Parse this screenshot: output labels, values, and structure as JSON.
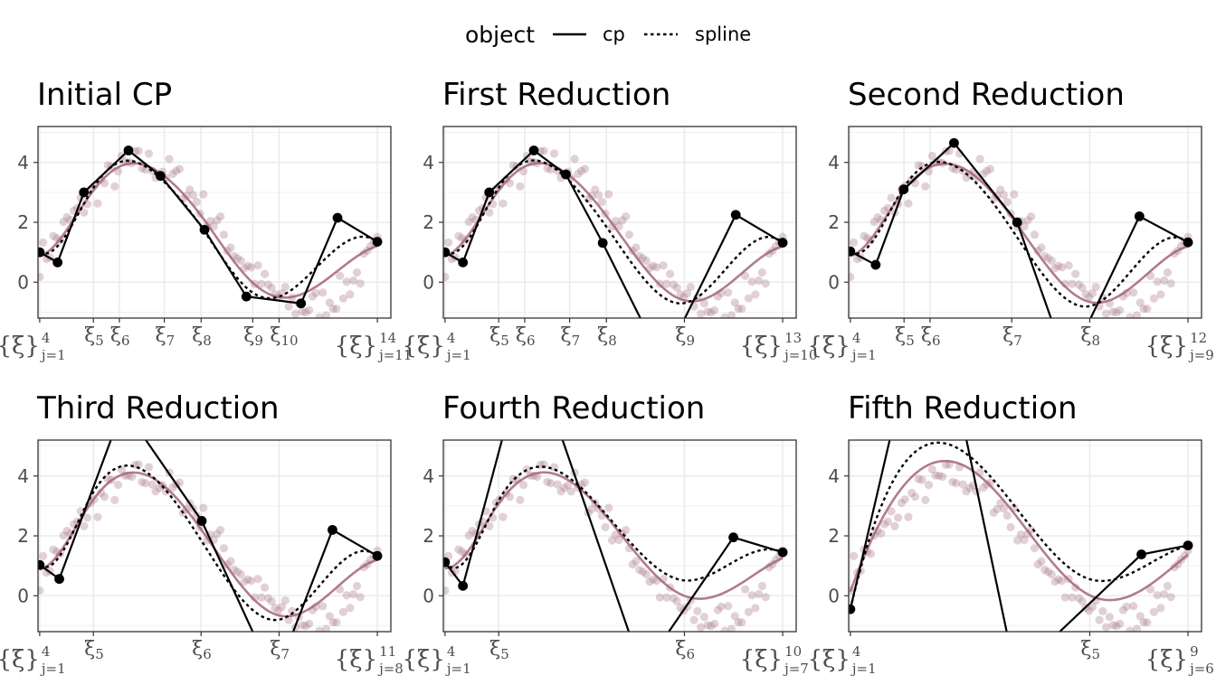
{
  "legend": {
    "title": "object",
    "entries": [
      {
        "label": "cp",
        "linetype": "solid"
      },
      {
        "label": "spline",
        "linetype": "dashed"
      }
    ]
  },
  "colors": {
    "points": "#a87a8c",
    "fitted": "#a5647b",
    "curve": "#000000",
    "grid": "#ebebeb",
    "panel_border": "#333333"
  },
  "chart_data": [
    {
      "type": "line",
      "title": "Initial CP",
      "xlim": [
        -0.005,
        1.04
      ],
      "ylim": [
        -1.2,
        5.2
      ],
      "yticks": [
        0,
        2,
        4
      ],
      "knots": [
        {
          "x": 0.0,
          "symbol": "{ξ}",
          "sup": "4",
          "sub": "j=1"
        },
        {
          "x": 0.159,
          "symbol": "ξ",
          "sub": "5"
        },
        {
          "x": 0.236,
          "symbol": "ξ",
          "sub": "6"
        },
        {
          "x": 0.369,
          "symbol": "ξ",
          "sub": "7"
        },
        {
          "x": 0.478,
          "symbol": "ξ",
          "sub": "8"
        },
        {
          "x": 0.631,
          "symbol": "ξ",
          "sub": "9"
        },
        {
          "x": 0.709,
          "symbol": "ξ",
          "sub": "10"
        },
        {
          "x": 1.0,
          "symbol": "{ξ}",
          "sup": "14",
          "sub": "j=11"
        }
      ],
      "control_polygon": [
        [
          0.0,
          1.0
        ],
        [
          0.053,
          0.66
        ],
        [
          0.131,
          3.0
        ],
        [
          0.263,
          4.4
        ],
        [
          0.358,
          3.55
        ],
        [
          0.488,
          1.75
        ],
        [
          0.612,
          -0.48
        ],
        [
          0.774,
          -0.71
        ],
        [
          0.882,
          2.15
        ],
        [
          1.0,
          1.35
        ]
      ]
    },
    {
      "type": "line",
      "title": "First Reduction",
      "xlim": [
        -0.005,
        1.04
      ],
      "ylim": [
        -1.2,
        5.2
      ],
      "yticks": [
        0,
        2,
        4
      ],
      "knots": [
        {
          "x": 0.0,
          "symbol": "{ξ}",
          "sup": "4",
          "sub": "j=1"
        },
        {
          "x": 0.159,
          "symbol": "ξ",
          "sub": "5"
        },
        {
          "x": 0.236,
          "symbol": "ξ",
          "sub": "6"
        },
        {
          "x": 0.369,
          "symbol": "ξ",
          "sub": "7"
        },
        {
          "x": 0.478,
          "symbol": "ξ",
          "sub": "8"
        },
        {
          "x": 0.709,
          "symbol": "ξ",
          "sub": "9"
        },
        {
          "x": 1.0,
          "symbol": "{ξ}",
          "sup": "13",
          "sub": "j=10"
        }
      ],
      "control_polygon": [
        [
          0.0,
          1.0
        ],
        [
          0.053,
          0.66
        ],
        [
          0.131,
          3.0
        ],
        [
          0.263,
          4.4
        ],
        [
          0.358,
          3.6
        ],
        [
          0.467,
          1.31
        ],
        [
          0.645,
          -2.7
        ],
        [
          0.861,
          2.25
        ],
        [
          1.0,
          1.32
        ]
      ]
    },
    {
      "type": "line",
      "title": "Second Reduction",
      "xlim": [
        -0.005,
        1.04
      ],
      "ylim": [
        -1.2,
        5.2
      ],
      "yticks": [
        0,
        2,
        4
      ],
      "knots": [
        {
          "x": 0.0,
          "symbol": "{ξ}",
          "sup": "4",
          "sub": "j=1"
        },
        {
          "x": 0.159,
          "symbol": "ξ",
          "sub": "5"
        },
        {
          "x": 0.236,
          "symbol": "ξ",
          "sub": "6"
        },
        {
          "x": 0.478,
          "symbol": "ξ",
          "sub": "7"
        },
        {
          "x": 0.709,
          "symbol": "ξ",
          "sub": "8"
        },
        {
          "x": 1.0,
          "symbol": "{ξ}",
          "sup": "12",
          "sub": "j=9"
        }
      ],
      "control_polygon": [
        [
          0.0,
          1.03
        ],
        [
          0.075,
          0.58
        ],
        [
          0.158,
          3.1
        ],
        [
          0.307,
          4.65
        ],
        [
          0.494,
          2.0
        ],
        [
          0.644,
          -2.8
        ],
        [
          0.856,
          2.2
        ],
        [
          1.0,
          1.33
        ]
      ]
    },
    {
      "type": "line",
      "title": "Third Reduction",
      "xlim": [
        -0.005,
        1.04
      ],
      "ylim": [
        -1.2,
        5.2
      ],
      "yticks": [
        0,
        2,
        4
      ],
      "knots": [
        {
          "x": 0.0,
          "symbol": "{ξ}",
          "sup": "4",
          "sub": "j=1"
        },
        {
          "x": 0.159,
          "symbol": "ξ",
          "sub": "5"
        },
        {
          "x": 0.478,
          "symbol": "ξ",
          "sub": "6"
        },
        {
          "x": 0.709,
          "symbol": "ξ",
          "sub": "7"
        },
        {
          "x": 1.0,
          "symbol": "{ξ}",
          "sup": "11",
          "sub": "j=8"
        }
      ],
      "control_polygon": [
        [
          0.0,
          1.03
        ],
        [
          0.058,
          0.56
        ],
        [
          0.247,
          6.3
        ],
        [
          0.48,
          2.5
        ],
        [
          0.696,
          -2.8
        ],
        [
          0.867,
          2.2
        ],
        [
          1.0,
          1.33
        ]
      ]
    },
    {
      "type": "line",
      "title": "Fourth Reduction",
      "xlim": [
        -0.005,
        1.04
      ],
      "ylim": [
        -1.2,
        5.2
      ],
      "yticks": [
        0,
        2,
        4
      ],
      "knots": [
        {
          "x": 0.0,
          "symbol": "{ξ}",
          "sup": "4",
          "sub": "j=1"
        },
        {
          "x": 0.159,
          "symbol": "ξ",
          "sub": "5"
        },
        {
          "x": 0.709,
          "symbol": "ξ",
          "sub": "6"
        },
        {
          "x": 1.0,
          "symbol": "{ξ}",
          "sup": "10",
          "sub": "j=7"
        }
      ],
      "control_polygon": [
        [
          0.0,
          1.12
        ],
        [
          0.053,
          0.33
        ],
        [
          0.247,
          8.5
        ],
        [
          0.584,
          -2.5
        ],
        [
          0.854,
          1.95
        ],
        [
          1.0,
          1.45
        ]
      ]
    },
    {
      "type": "line",
      "title": "Fifth Reduction",
      "xlim": [
        -0.005,
        1.04
      ],
      "ylim": [
        -1.2,
        5.2
      ],
      "yticks": [
        0,
        2,
        4
      ],
      "knots": [
        {
          "x": 0.0,
          "symbol": "{ξ}",
          "sup": "4",
          "sub": "j=1"
        },
        {
          "x": 0.709,
          "symbol": "ξ",
          "sub": "5"
        },
        {
          "x": 1.0,
          "symbol": "{ξ}",
          "sup": "9",
          "sub": "j=6"
        }
      ],
      "control_polygon": [
        [
          0.0,
          -0.45
        ],
        [
          0.236,
          11.0
        ],
        [
          0.489,
          -2.6
        ],
        [
          0.862,
          1.38
        ],
        [
          1.0,
          1.68
        ]
      ]
    }
  ]
}
